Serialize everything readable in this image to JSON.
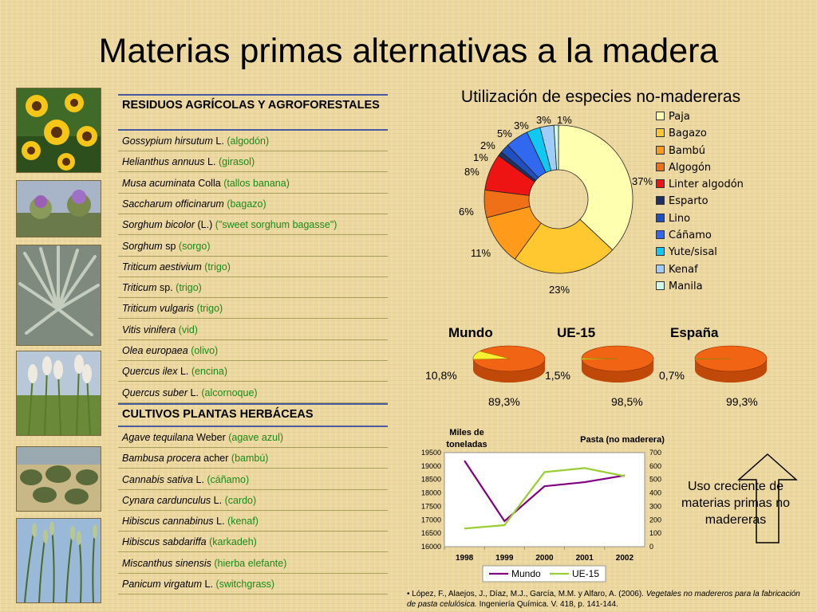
{
  "title": "Materias primas alternativas a la madera",
  "sections": [
    {
      "heading": "RESIDUOS AGRÍCOLAS Y AGROFORESTALES",
      "items": [
        {
          "sci": "Gossypium hirsutum",
          "auth": "L.",
          "common": "(algodón)"
        },
        {
          "sci": "Helianthus annuus",
          "auth": "L.",
          "common": "(girasol)"
        },
        {
          "sci": "Musa acuminata",
          "auth": "Colla",
          "common": "(tallos banana)"
        },
        {
          "sci": "Saccharum officinarum",
          "auth": "",
          "common": "(bagazo)"
        },
        {
          "sci": "Sorghum bicolor",
          "auth": "(L.)",
          "common": "(\"sweet sorghum bagasse\")"
        },
        {
          "sci": "Sorghum",
          "auth": "sp",
          "common": "(sorgo)"
        },
        {
          "sci": "Triticum aestivium",
          "auth": "",
          "common": "(trigo)"
        },
        {
          "sci": "Triticum",
          "auth": "sp.",
          "common": "(trigo)"
        },
        {
          "sci": "Triticum vulgaris",
          "auth": "",
          "common": "(trigo)"
        },
        {
          "sci": "Vitis vinifera",
          "auth": "",
          "common": "(vid)"
        },
        {
          "sci": "Olea europaea",
          "auth": "",
          "common": "(olivo)"
        },
        {
          "sci": "Quercus ilex",
          "auth": "L.",
          "common": "(encina)"
        },
        {
          "sci": "Quercus suber",
          "auth": "L.",
          "common": "(alcornoque)"
        }
      ]
    },
    {
      "heading": "CULTIVOS PLANTAS HERBÁCEAS",
      "items": [
        {
          "sci": "Agave tequilana",
          "auth": "Weber",
          "common": "(agave azul)"
        },
        {
          "sci": "Bambusa procera",
          "auth": "acher",
          "common": "(bambú)"
        },
        {
          "sci": "Cannabis sativa",
          "auth": "L.",
          "common": "(cáñamo)"
        },
        {
          "sci": "Cynara cardunculus",
          "auth": "L.",
          "common": "(cardo)"
        },
        {
          "sci": "Hibiscus cannabinus",
          "auth": "L.",
          "common": "(kenaf)"
        },
        {
          "sci": "Hibiscus sabdariffa",
          "auth": "",
          "common": "(karkadeh)"
        },
        {
          "sci": "Miscanthus sinensis",
          "auth": "",
          "common": "(hierba elefante)"
        },
        {
          "sci": "Panicum virgatum",
          "auth": "L.",
          "common": "(switchgrass)"
        }
      ]
    }
  ],
  "photos": [
    "sunflower-photo",
    "artichoke-thistle-photo",
    "agave-photo",
    "grass-plumes-photo",
    "olive-grove-photo",
    "reeds-photo"
  ],
  "chart_data": [
    {
      "type": "pie",
      "donut": true,
      "title": "Utilización de especies no-madereras",
      "categories": [
        "Paja",
        "Bagazo",
        "Bambú",
        "Algogón",
        "Linter algodón",
        "Esparto",
        "Lino",
        "Cáñamo",
        "Yute/sisal",
        "Kenaf",
        "Manila"
      ],
      "values": [
        37,
        23,
        11,
        6,
        8,
        1,
        2,
        5,
        3,
        3,
        1
      ],
      "labels": [
        "37%",
        "23%",
        "11%",
        "6%",
        "8%",
        "1%",
        "2%",
        "5%",
        "3%",
        "3%",
        "1%"
      ],
      "colors": [
        "#ffffb0",
        "#ffc830",
        "#ff9a1a",
        "#f07018",
        "#ee1414",
        "#203060",
        "#2050c0",
        "#3068f0",
        "#10c8f0",
        "#a0ccf8",
        "#d0fae8"
      ],
      "legend": "right"
    },
    {
      "type": "pie",
      "title": "",
      "groups": [
        {
          "name": "Mundo",
          "small_label": "10,8%",
          "large_label": "89,3%",
          "values": [
            10.8,
            89.3
          ]
        },
        {
          "name": "UE-15",
          "small_label": "1,5%",
          "large_label": "98,5%",
          "values": [
            1.5,
            98.5
          ]
        },
        {
          "name": "España",
          "small_label": "0,7%",
          "large_label": "99,3%",
          "values": [
            0.7,
            99.3
          ]
        }
      ],
      "colors": [
        "#f8f030",
        "#f06414"
      ]
    },
    {
      "type": "line",
      "title": "Pasta (no maderera)",
      "ylabel": "Miles de toneladas",
      "x": [
        1998,
        1999,
        2000,
        2001,
        2002
      ],
      "series": [
        {
          "name": "Mundo",
          "axis": "left",
          "color": "#800080",
          "values": [
            19200,
            16950,
            18250,
            18400,
            18650
          ]
        },
        {
          "name": "UE-15",
          "axis": "right",
          "color": "#9acd32",
          "values": [
            135,
            160,
            555,
            585,
            525
          ]
        }
      ],
      "ylim_left": [
        16000,
        19500
      ],
      "yticks_left": [
        16000,
        16500,
        17000,
        17500,
        18000,
        18500,
        19000,
        19500
      ],
      "ylim_right": [
        0,
        700
      ],
      "yticks_right": [
        0,
        100,
        200,
        300,
        400,
        500,
        600,
        700
      ],
      "legend": "bottom"
    }
  ],
  "note": "Uso creciente de materias primas no madereras",
  "reference": {
    "bullet": "•",
    "authors": "López, F., Alaejos, J., Díaz, M.J., García, M.M. y Alfaro, A. (2006).",
    "title_italic": "Vegetales no madereros para la fabricación de pasta celulósica.",
    "journal": "Ingeniería Química. V. 418, p. 141-144."
  }
}
